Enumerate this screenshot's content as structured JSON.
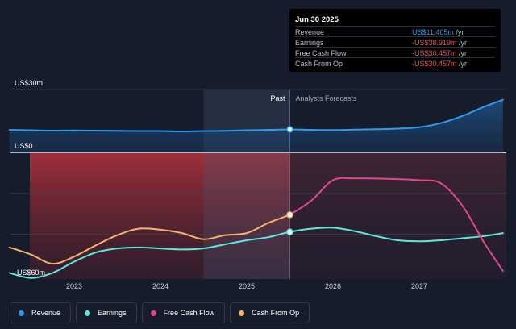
{
  "tooltip": {
    "date": "Jun 30 2025",
    "rows": [
      {
        "label": "Revenue",
        "value": "US$11.405m",
        "unit": " /yr",
        "color": "#2d9bf0"
      },
      {
        "label": "Earnings",
        "value": "-US$38.919m",
        "unit": " /yr",
        "color": "#f0525a"
      },
      {
        "label": "Free Cash Flow",
        "value": "-US$30.457m",
        "unit": " /yr",
        "color": "#f0525a"
      },
      {
        "label": "Cash From Op",
        "value": "-US$30.457m",
        "unit": " /yr",
        "color": "#f0525a"
      }
    ]
  },
  "chart_data": {
    "type": "line",
    "y_top_label": "US$30m",
    "y_zero_label": "US$0",
    "y_bottom_label": "-US$60m",
    "past_label": "Past",
    "forecast_label": "Analysts Forecasts",
    "x_ticks": [
      "2023",
      "2024",
      "2025",
      "2026",
      "2027"
    ],
    "x_range": [
      2022.25,
      2027.97
    ],
    "y_range": [
      -62,
      31
    ],
    "divider_x": 2025.5,
    "highlight_band": [
      2024.5,
      2025.5
    ],
    "series": [
      {
        "name": "Revenue",
        "color": "#2d9bf0",
        "points": [
          [
            2022.25,
            11.2
          ],
          [
            2022.5,
            11.0
          ],
          [
            2022.75,
            10.8
          ],
          [
            2023.0,
            10.9
          ],
          [
            2023.25,
            10.8
          ],
          [
            2023.5,
            10.7
          ],
          [
            2023.75,
            10.6
          ],
          [
            2024.0,
            10.6
          ],
          [
            2024.25,
            10.4
          ],
          [
            2024.5,
            10.6
          ],
          [
            2024.75,
            10.7
          ],
          [
            2025.0,
            11.0
          ],
          [
            2025.25,
            11.2
          ],
          [
            2025.5,
            11.4
          ],
          [
            2025.75,
            11.2
          ],
          [
            2026.0,
            11.1
          ],
          [
            2026.25,
            11.3
          ],
          [
            2026.5,
            11.5
          ],
          [
            2026.75,
            11.8
          ],
          [
            2027.0,
            12.5
          ],
          [
            2027.25,
            14.5
          ],
          [
            2027.5,
            18.0
          ],
          [
            2027.75,
            22.5
          ],
          [
            2027.97,
            26.0
          ]
        ]
      },
      {
        "name": "Earnings",
        "color": "#5ee8dc",
        "points": [
          [
            2022.25,
            -59.0
          ],
          [
            2022.5,
            -61.5
          ],
          [
            2022.75,
            -59.0
          ],
          [
            2023.0,
            -53.5
          ],
          [
            2023.25,
            -49.0
          ],
          [
            2023.5,
            -47.0
          ],
          [
            2023.75,
            -46.5
          ],
          [
            2024.0,
            -47.0
          ],
          [
            2024.25,
            -47.5
          ],
          [
            2024.5,
            -47.0
          ],
          [
            2024.75,
            -45.0
          ],
          [
            2025.0,
            -43.0
          ],
          [
            2025.25,
            -41.5
          ],
          [
            2025.5,
            -38.9
          ],
          [
            2025.75,
            -37.3
          ],
          [
            2026.0,
            -36.8
          ],
          [
            2026.25,
            -38.5
          ],
          [
            2026.5,
            -41.0
          ],
          [
            2026.75,
            -43.0
          ],
          [
            2027.0,
            -43.5
          ],
          [
            2027.25,
            -43.0
          ],
          [
            2027.5,
            -42.0
          ],
          [
            2027.75,
            -41.0
          ],
          [
            2027.97,
            -39.5
          ]
        ]
      },
      {
        "name": "Free Cash Flow",
        "color": "#e0478f",
        "points": [
          [
            2025.5,
            -30.5
          ],
          [
            2025.75,
            -23.5
          ],
          [
            2026.0,
            -13.5
          ],
          [
            2026.25,
            -12.6
          ],
          [
            2026.5,
            -12.7
          ],
          [
            2026.75,
            -13.0
          ],
          [
            2027.0,
            -13.5
          ],
          [
            2027.25,
            -15.0
          ],
          [
            2027.5,
            -26.0
          ],
          [
            2027.75,
            -44.0
          ],
          [
            2027.97,
            -58.0
          ]
        ]
      },
      {
        "name": "Cash From Op",
        "color": "#f5b26b",
        "points": [
          [
            2022.25,
            -46.5
          ],
          [
            2022.5,
            -50.0
          ],
          [
            2022.75,
            -54.5
          ],
          [
            2023.0,
            -51.0
          ],
          [
            2023.25,
            -45.5
          ],
          [
            2023.5,
            -40.5
          ],
          [
            2023.75,
            -37.3
          ],
          [
            2024.0,
            -37.8
          ],
          [
            2024.25,
            -39.5
          ],
          [
            2024.5,
            -42.5
          ],
          [
            2024.75,
            -40.5
          ],
          [
            2025.0,
            -39.5
          ],
          [
            2025.25,
            -34.5
          ],
          [
            2025.5,
            -30.5
          ]
        ]
      }
    ]
  },
  "legend": [
    {
      "label": "Revenue",
      "color": "#2d9bf0"
    },
    {
      "label": "Earnings",
      "color": "#5ee8dc"
    },
    {
      "label": "Free Cash Flow",
      "color": "#e0478f"
    },
    {
      "label": "Cash From Op",
      "color": "#f5b26b"
    }
  ]
}
